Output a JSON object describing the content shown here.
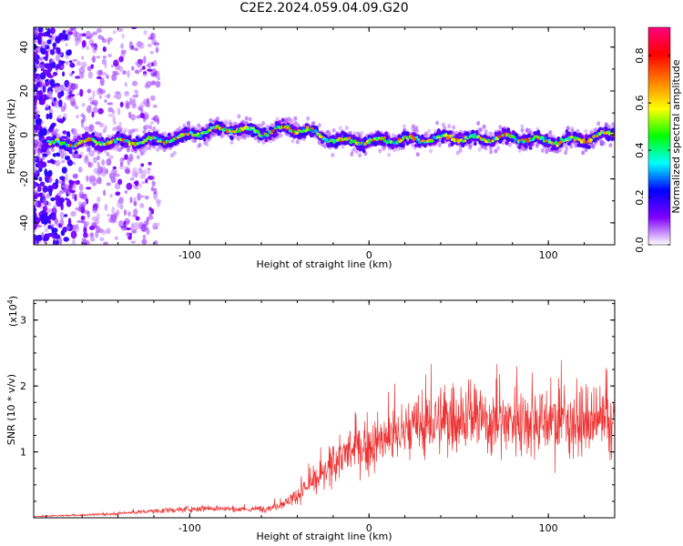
{
  "title": "C2E2.2024.059.04.09.G20",
  "chart_data": [
    {
      "type": "heatmap",
      "xlabel": "Height of straight line (km)",
      "ylabel": "Frequency (Hz)",
      "xlim": [
        -187,
        137
      ],
      "ylim": [
        -50,
        49
      ],
      "x_ticks": [
        "-100",
        "0",
        "100"
      ],
      "y_ticks": [
        "40",
        "20",
        "0",
        "-20",
        "-40"
      ],
      "colorbar": {
        "label": "Normalized spectral amplitude",
        "range": [
          0,
          0.92
        ],
        "ticks": [
          "0.0",
          "0.2",
          "0.4",
          "0.6",
          "0.8"
        ],
        "colors": [
          "#ffffff",
          "#8000ff",
          "#0000ff",
          "#00ffff",
          "#00ff00",
          "#ffff00",
          "#ff8000",
          "#ff0000",
          "#ff0080"
        ]
      },
      "ridge": {
        "x": [
          -187,
          -170,
          -150,
          -130,
          -110,
          -90,
          -75,
          -60,
          -45,
          -35,
          -25,
          -15,
          0,
          15,
          30,
          45,
          60,
          75,
          90,
          105,
          120,
          137
        ],
        "y": [
          -4,
          -4,
          -3,
          -3,
          -2,
          2,
          3,
          1,
          3,
          2,
          -1,
          -3,
          -3,
          -2,
          -2,
          -1,
          -2,
          -1,
          -2,
          -3,
          -2,
          1
        ]
      }
    },
    {
      "type": "line",
      "xlabel": "Height of straight line (km)",
      "ylabel": "SNR (10 * v/v)",
      "multiplier": "(x10",
      "multiplier_exp": "4",
      "xlim": [
        -187,
        137
      ],
      "ylim": [
        0,
        3.3
      ],
      "x_ticks": [
        "-100",
        "0",
        "100"
      ],
      "y_ticks": [
        "1",
        "2",
        "3"
      ],
      "color": "#ee3333",
      "envelope": {
        "x": [
          -187,
          -150,
          -120,
          -90,
          -70,
          -55,
          -45,
          -35,
          -25,
          -18,
          -10,
          0,
          10,
          20,
          30,
          40,
          50,
          60,
          70,
          80,
          90,
          100,
          110,
          120,
          137
        ],
        "y": [
          0.02,
          0.05,
          0.1,
          0.15,
          0.12,
          0.15,
          0.25,
          0.45,
          0.65,
          0.9,
          1.0,
          1.1,
          1.2,
          1.3,
          1.4,
          1.45,
          1.55,
          1.5,
          1.45,
          1.5,
          1.5,
          1.45,
          1.5,
          1.4,
          1.45
        ]
      }
    }
  ]
}
